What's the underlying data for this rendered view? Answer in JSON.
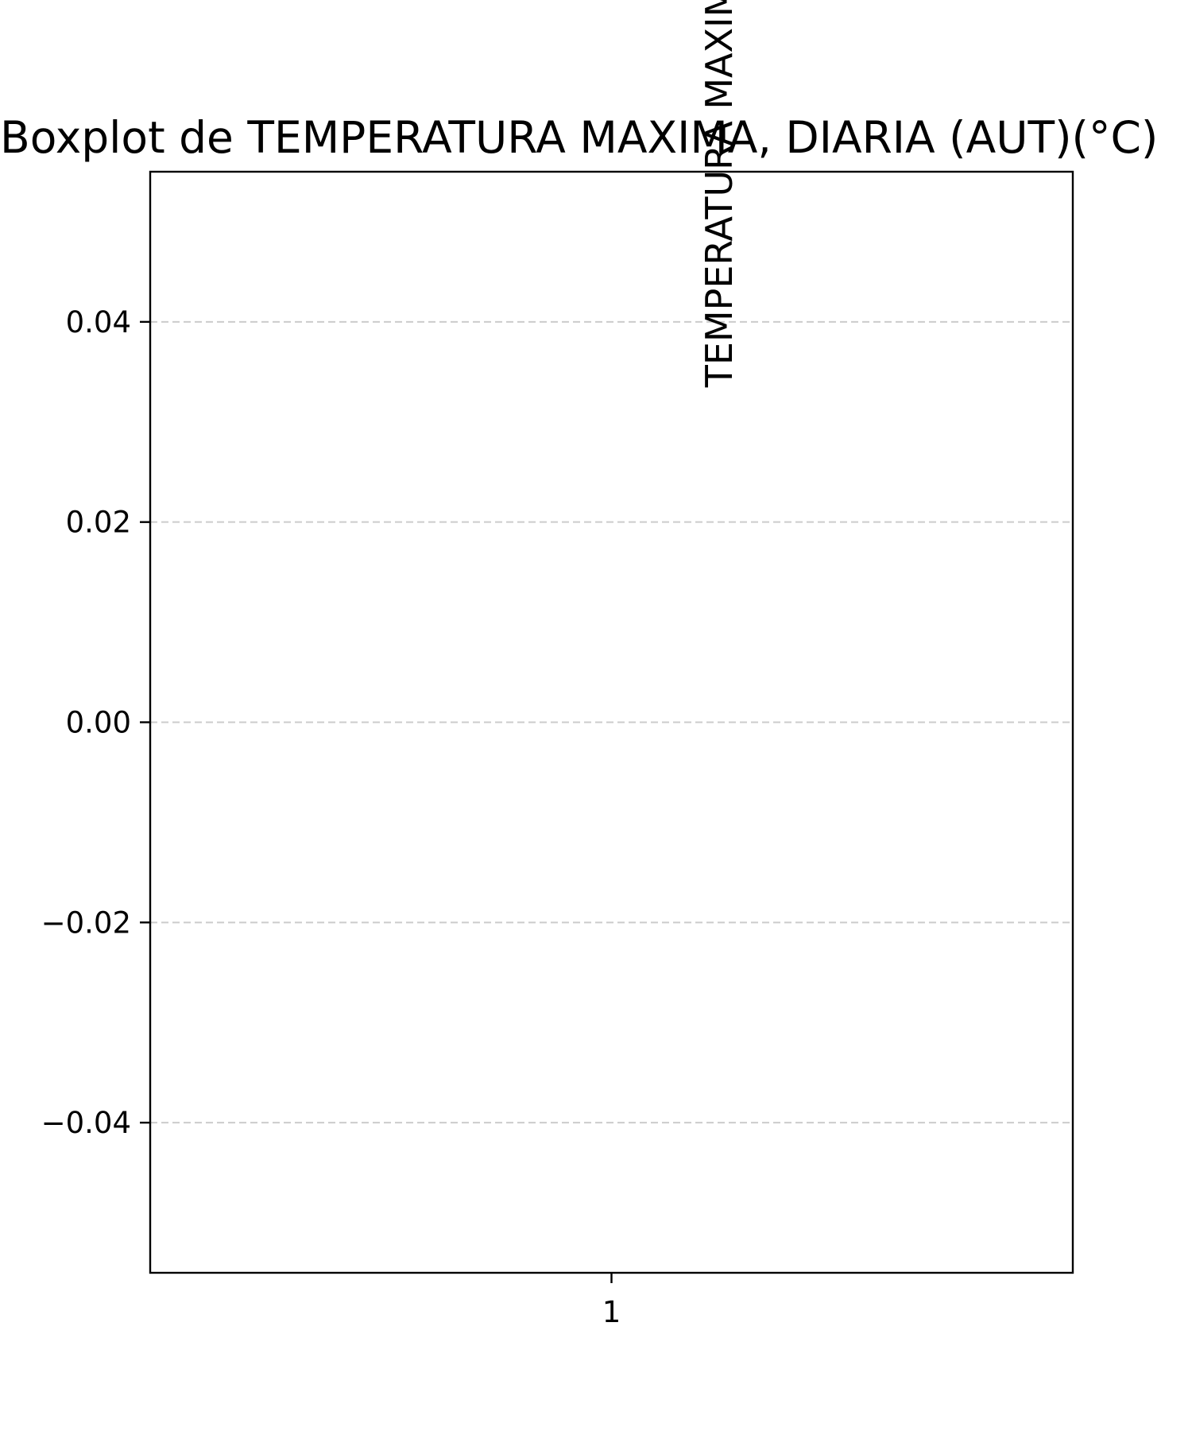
{
  "chart_data": {
    "type": "box",
    "title": "Boxplot de TEMPERATURA MAXIMA, DIARIA (AUT)(°C)",
    "ylabel": "TEMPERATURA MAXIMA, DIARIA (AUT)(°C)",
    "xlabel": "",
    "categories": [
      "1"
    ],
    "series": [
      {
        "values": []
      }
    ],
    "ylim": [
      -0.055,
      0.055
    ],
    "yticks": [
      0.04,
      0.02,
      0.0,
      -0.02,
      -0.04
    ],
    "ytick_labels": [
      "0.04",
      "0.02",
      "0.00",
      "−0.02",
      "−0.04"
    ],
    "grid": "y-dashed",
    "colors": {
      "grid": "#cccccc",
      "axes": "#000000",
      "background": "#ffffff"
    }
  }
}
